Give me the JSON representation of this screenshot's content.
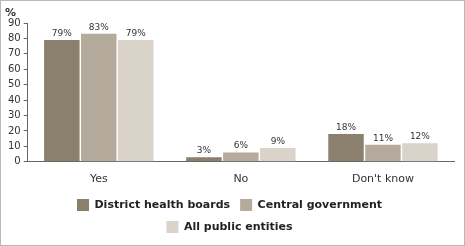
{
  "chart_data": {
    "type": "bar",
    "ylabel": "%",
    "categories": [
      "Yes",
      "No",
      "Don't know"
    ],
    "series": [
      {
        "name": "District health boards",
        "color": "#8b7f6e",
        "values": [
          79,
          3,
          18
        ],
        "value_labels": [
          "79%",
          "3%",
          "18%"
        ]
      },
      {
        "name": "Central government",
        "color": "#b5ab9c",
        "values": [
          83,
          6,
          11
        ],
        "value_labels": [
          "83%",
          "6%",
          "11%"
        ]
      },
      {
        "name": "All public entities",
        "color": "#d9d3ca",
        "values": [
          79,
          9,
          12
        ],
        "value_labels": [
          "79%",
          "9%",
          "12%"
        ]
      }
    ],
    "ylim": [
      0,
      90
    ],
    "yticks": [
      0,
      10,
      20,
      30,
      40,
      50,
      60,
      70,
      80,
      90
    ],
    "grid": false,
    "legend": "bottom",
    "data_labels": true
  }
}
